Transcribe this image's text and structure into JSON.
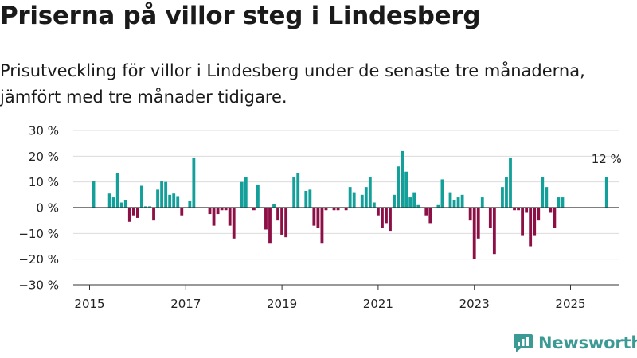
{
  "title": "Priserna på villor steg i Lindesberg",
  "subtitle": "Prisutveckling för villor i Lindesberg under de senaste tre månaderna, jämfört med tre månader tidigare.",
  "brand": "Newsworthy",
  "colors": {
    "positive": "#14a09a",
    "negative": "#8c0f46",
    "grid": "#dcdcdc",
    "zero_line": "#333333",
    "brand": "#3c9a94"
  },
  "chart_data": {
    "type": "bar",
    "title": "",
    "xlabel": "",
    "ylabel": "",
    "ylim": [
      -30,
      30
    ],
    "yticks": [
      30,
      20,
      10,
      0,
      -10,
      -20,
      -30
    ],
    "ytick_labels": [
      "30 %",
      "20 %",
      "10 %",
      "0 %",
      "−10 %",
      "−20 %",
      "−30 %"
    ],
    "xticks": [
      "2015",
      "2017",
      "2019",
      "2021",
      "2023",
      "2025"
    ],
    "annotation": "12 %",
    "start": "2015-02",
    "frequency": "monthly",
    "values": [
      10.5,
      0,
      0,
      0,
      5.5,
      4,
      13.5,
      2,
      3,
      -5.5,
      -3,
      -4,
      8.5,
      0.5,
      0.5,
      -5,
      7,
      10.5,
      10,
      5,
      5.5,
      4.5,
      -3,
      0,
      2.5,
      19.5,
      0,
      0,
      0,
      -2.5,
      -7,
      -2.5,
      -1,
      -1,
      -7,
      -12,
      0,
      10,
      12,
      0,
      -1,
      9,
      0,
      -8.5,
      -14,
      1.5,
      -5,
      -10.5,
      -11.5,
      0,
      12,
      13.5,
      0,
      6.5,
      7,
      -7,
      -8,
      -14,
      -1,
      0,
      -1,
      -1,
      0,
      -1,
      8,
      6,
      0,
      5,
      8,
      12,
      2,
      -3,
      -8,
      -6,
      -9,
      5,
      16,
      22,
      14,
      4,
      6,
      1,
      0,
      -3,
      -6,
      0,
      1,
      11,
      0,
      6,
      3,
      4,
      5,
      0,
      -5,
      -20,
      -12,
      4,
      0,
      -8,
      -18,
      0,
      8,
      12,
      19.5,
      -1,
      -1,
      -11,
      -2,
      -15,
      -11,
      -5,
      12,
      8,
      -2,
      -8,
      4,
      4,
      0,
      0,
      0,
      0,
      0,
      0,
      0,
      0,
      0,
      0,
      12
    ]
  }
}
